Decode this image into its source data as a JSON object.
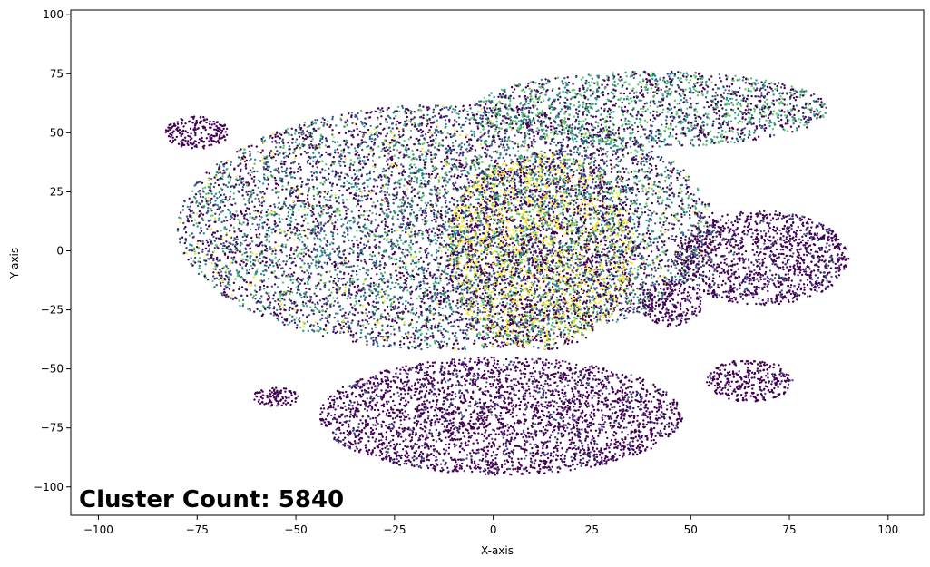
{
  "chart_data": {
    "type": "scatter",
    "title": "",
    "xlabel": "X-axis",
    "ylabel": "Y-axis",
    "xlim": [
      -107,
      109
    ],
    "ylim": [
      -112,
      102
    ],
    "xticks": [
      -100,
      -75,
      -50,
      -25,
      0,
      25,
      50,
      75,
      100
    ],
    "xtick_labels": [
      "−100",
      "−75",
      "−50",
      "−25",
      "0",
      "25",
      "50",
      "75",
      "100"
    ],
    "yticks": [
      -100,
      -75,
      -50,
      -25,
      0,
      25,
      50,
      75,
      100
    ],
    "ytick_labels": [
      "−100",
      "−75",
      "−50",
      "−25",
      "0",
      "25",
      "50",
      "75",
      "100"
    ],
    "grid": false,
    "colormap": "viridis",
    "palette": [
      "#440154",
      "#3b528b",
      "#21918c",
      "#5ec962",
      "#fde725"
    ],
    "annotation": {
      "text": "Cluster Count: 5840"
    },
    "regions": [
      {
        "cx": -12,
        "cy": 10,
        "rx": 68,
        "ry": 52,
        "density": 8000,
        "weights": [
          0.38,
          0.27,
          0.18,
          0.13,
          0.04
        ]
      },
      {
        "cx": 12,
        "cy": 0,
        "rx": 24,
        "ry": 42,
        "density": 2600,
        "weights": [
          0.38,
          0.05,
          0.07,
          0.15,
          0.35
        ]
      },
      {
        "cx": 40,
        "cy": 60,
        "rx": 45,
        "ry": 16,
        "density": 1800,
        "weights": [
          0.35,
          0.15,
          0.22,
          0.28,
          0.0
        ]
      },
      {
        "cx": 2,
        "cy": -70,
        "rx": 46,
        "ry": 25,
        "density": 3200,
        "weights": [
          0.85,
          0.15,
          0.0,
          0.0,
          0.0
        ]
      },
      {
        "cx": 68,
        "cy": -3,
        "rx": 22,
        "ry": 20,
        "density": 1300,
        "weights": [
          0.8,
          0.2,
          0.0,
          0.0,
          0.0
        ]
      },
      {
        "cx": 65,
        "cy": -55,
        "rx": 11,
        "ry": 9,
        "density": 300,
        "weights": [
          0.9,
          0.1,
          0.0,
          0.0,
          0.0
        ]
      },
      {
        "cx": -75,
        "cy": 50,
        "rx": 8,
        "ry": 7,
        "density": 200,
        "weights": [
          1.0,
          0.0,
          0.0,
          0.0,
          0.0
        ]
      },
      {
        "cx": -55,
        "cy": -62,
        "rx": 6,
        "ry": 4,
        "density": 100,
        "weights": [
          1.0,
          0.0,
          0.0,
          0.0,
          0.0
        ]
      },
      {
        "cx": 45,
        "cy": -22,
        "rx": 8,
        "ry": 10,
        "density": 250,
        "weights": [
          0.9,
          0.1,
          0.0,
          0.0,
          0.0
        ]
      }
    ]
  }
}
